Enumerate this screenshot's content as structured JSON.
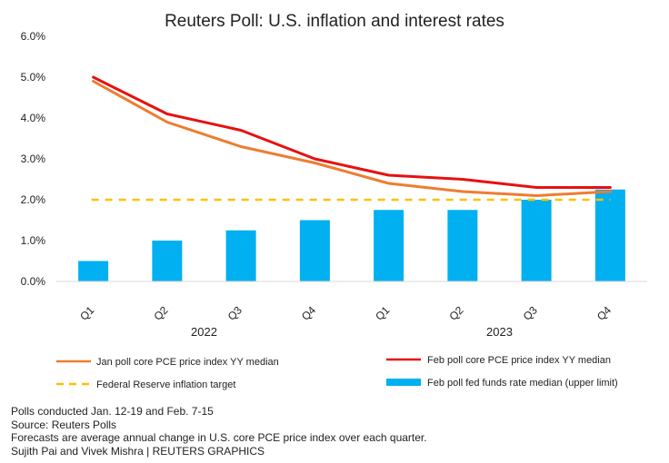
{
  "chart_data": {
    "type": "bar+line",
    "title": "Reuters Poll: U.S. inflation and interest rates",
    "categories": [
      "Q1",
      "Q2",
      "Q3",
      "Q4",
      "Q1",
      "Q2",
      "Q3",
      "Q4"
    ],
    "year_groups": [
      {
        "label": "2022",
        "start": 0,
        "end": 3
      },
      {
        "label": "2023",
        "start": 4,
        "end": 7
      }
    ],
    "y_ticks": [
      "0.0%",
      "1.0%",
      "2.0%",
      "3.0%",
      "4.0%",
      "5.0%",
      "6.0%"
    ],
    "ylim": [
      0,
      6
    ],
    "bars": {
      "name": "Feb poll fed funds rate median (upper limit)",
      "color": "#00b0f0",
      "values": [
        0.5,
        1.0,
        1.25,
        1.5,
        1.75,
        1.75,
        2.0,
        2.25
      ]
    },
    "series": [
      {
        "name": "Jan poll core PCE price index YY median",
        "color": "#ed7d31",
        "values": [
          4.9,
          3.9,
          3.3,
          2.9,
          2.4,
          2.2,
          2.1,
          2.2
        ]
      },
      {
        "name": "Feb poll core PCE price index YY median",
        "color": "#e81010",
        "values": [
          5.0,
          4.1,
          3.7,
          3.0,
          2.6,
          2.5,
          2.3,
          2.3
        ]
      }
    ],
    "reference_line": {
      "name": "Federal Reserve inflation target",
      "color": "#ffc000",
      "value": 2.0
    }
  },
  "footnotes": {
    "line1": "Polls conducted Jan. 12-19 and Feb. 7-15",
    "line2": "Source: Reuters Polls",
    "line3": "Forecasts are average annual change in U.S. core PCE price index over each quarter.",
    "line4": "Sujith Pai and Vivek Mishra | REUTERS GRAPHICS"
  }
}
